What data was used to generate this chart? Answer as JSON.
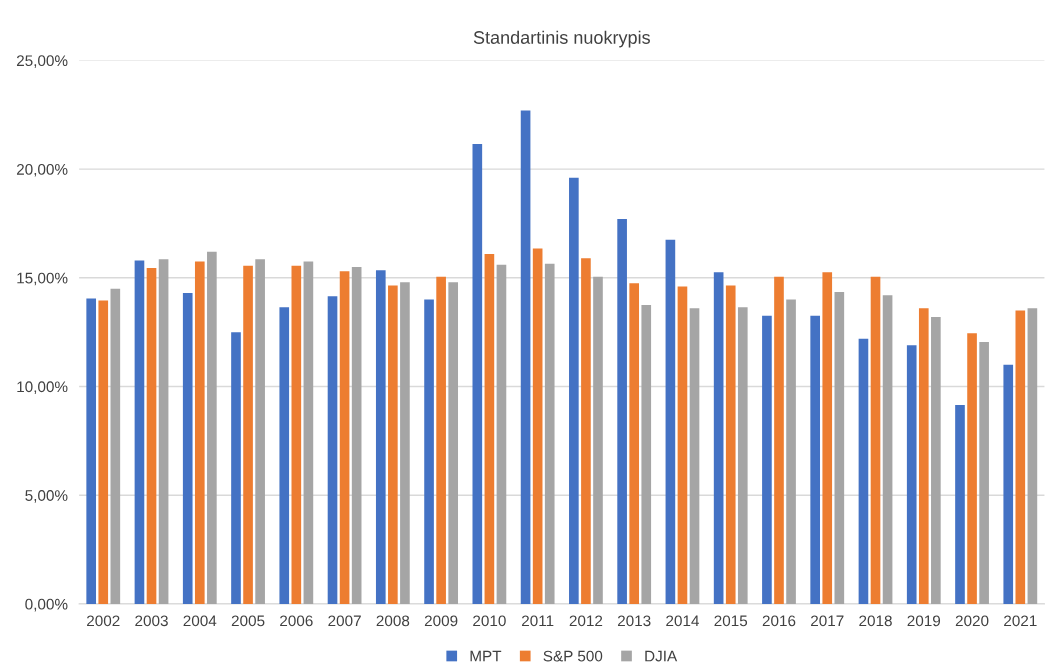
{
  "chart_data": {
    "type": "bar",
    "title": "Standartinis nuokrypis",
    "categories": [
      "2002",
      "2003",
      "2004",
      "2005",
      "2006",
      "2007",
      "2008",
      "2009",
      "2010",
      "2011",
      "2012",
      "2013",
      "2014",
      "2015",
      "2016",
      "2017",
      "2018",
      "2019",
      "2020",
      "2021"
    ],
    "series": [
      {
        "name": "MPT",
        "color": "#4472c4",
        "values": [
          14.05,
          15.8,
          14.3,
          12.5,
          13.65,
          14.15,
          15.35,
          14.0,
          21.15,
          22.7,
          19.6,
          17.7,
          16.75,
          15.25,
          13.25,
          13.25,
          12.2,
          11.9,
          9.15,
          11.0
        ]
      },
      {
        "name": "S&P 500",
        "color": "#ed7d31",
        "values": [
          13.95,
          15.45,
          15.75,
          15.55,
          15.55,
          15.3,
          14.65,
          15.05,
          16.1,
          16.35,
          15.9,
          14.75,
          14.6,
          14.65,
          15.05,
          15.25,
          15.05,
          13.6,
          12.45,
          13.5
        ]
      },
      {
        "name": "DJIA",
        "color": "#a5a5a5",
        "values": [
          14.5,
          15.85,
          16.2,
          15.85,
          15.75,
          15.5,
          14.8,
          14.8,
          15.6,
          15.65,
          15.05,
          13.75,
          13.6,
          13.65,
          14.0,
          14.35,
          14.2,
          13.2,
          12.05,
          13.6
        ]
      }
    ],
    "ylim": [
      0,
      25
    ],
    "yticks": [
      {
        "value": 0,
        "label": "0,00%"
      },
      {
        "value": 5,
        "label": "5,00%"
      },
      {
        "value": 10,
        "label": "10,00%"
      },
      {
        "value": 15,
        "label": "15,00%"
      },
      {
        "value": 20,
        "label": "20,00%"
      },
      {
        "value": 25,
        "label": "25,00%"
      }
    ],
    "grid": "y",
    "legend": "bottom"
  }
}
